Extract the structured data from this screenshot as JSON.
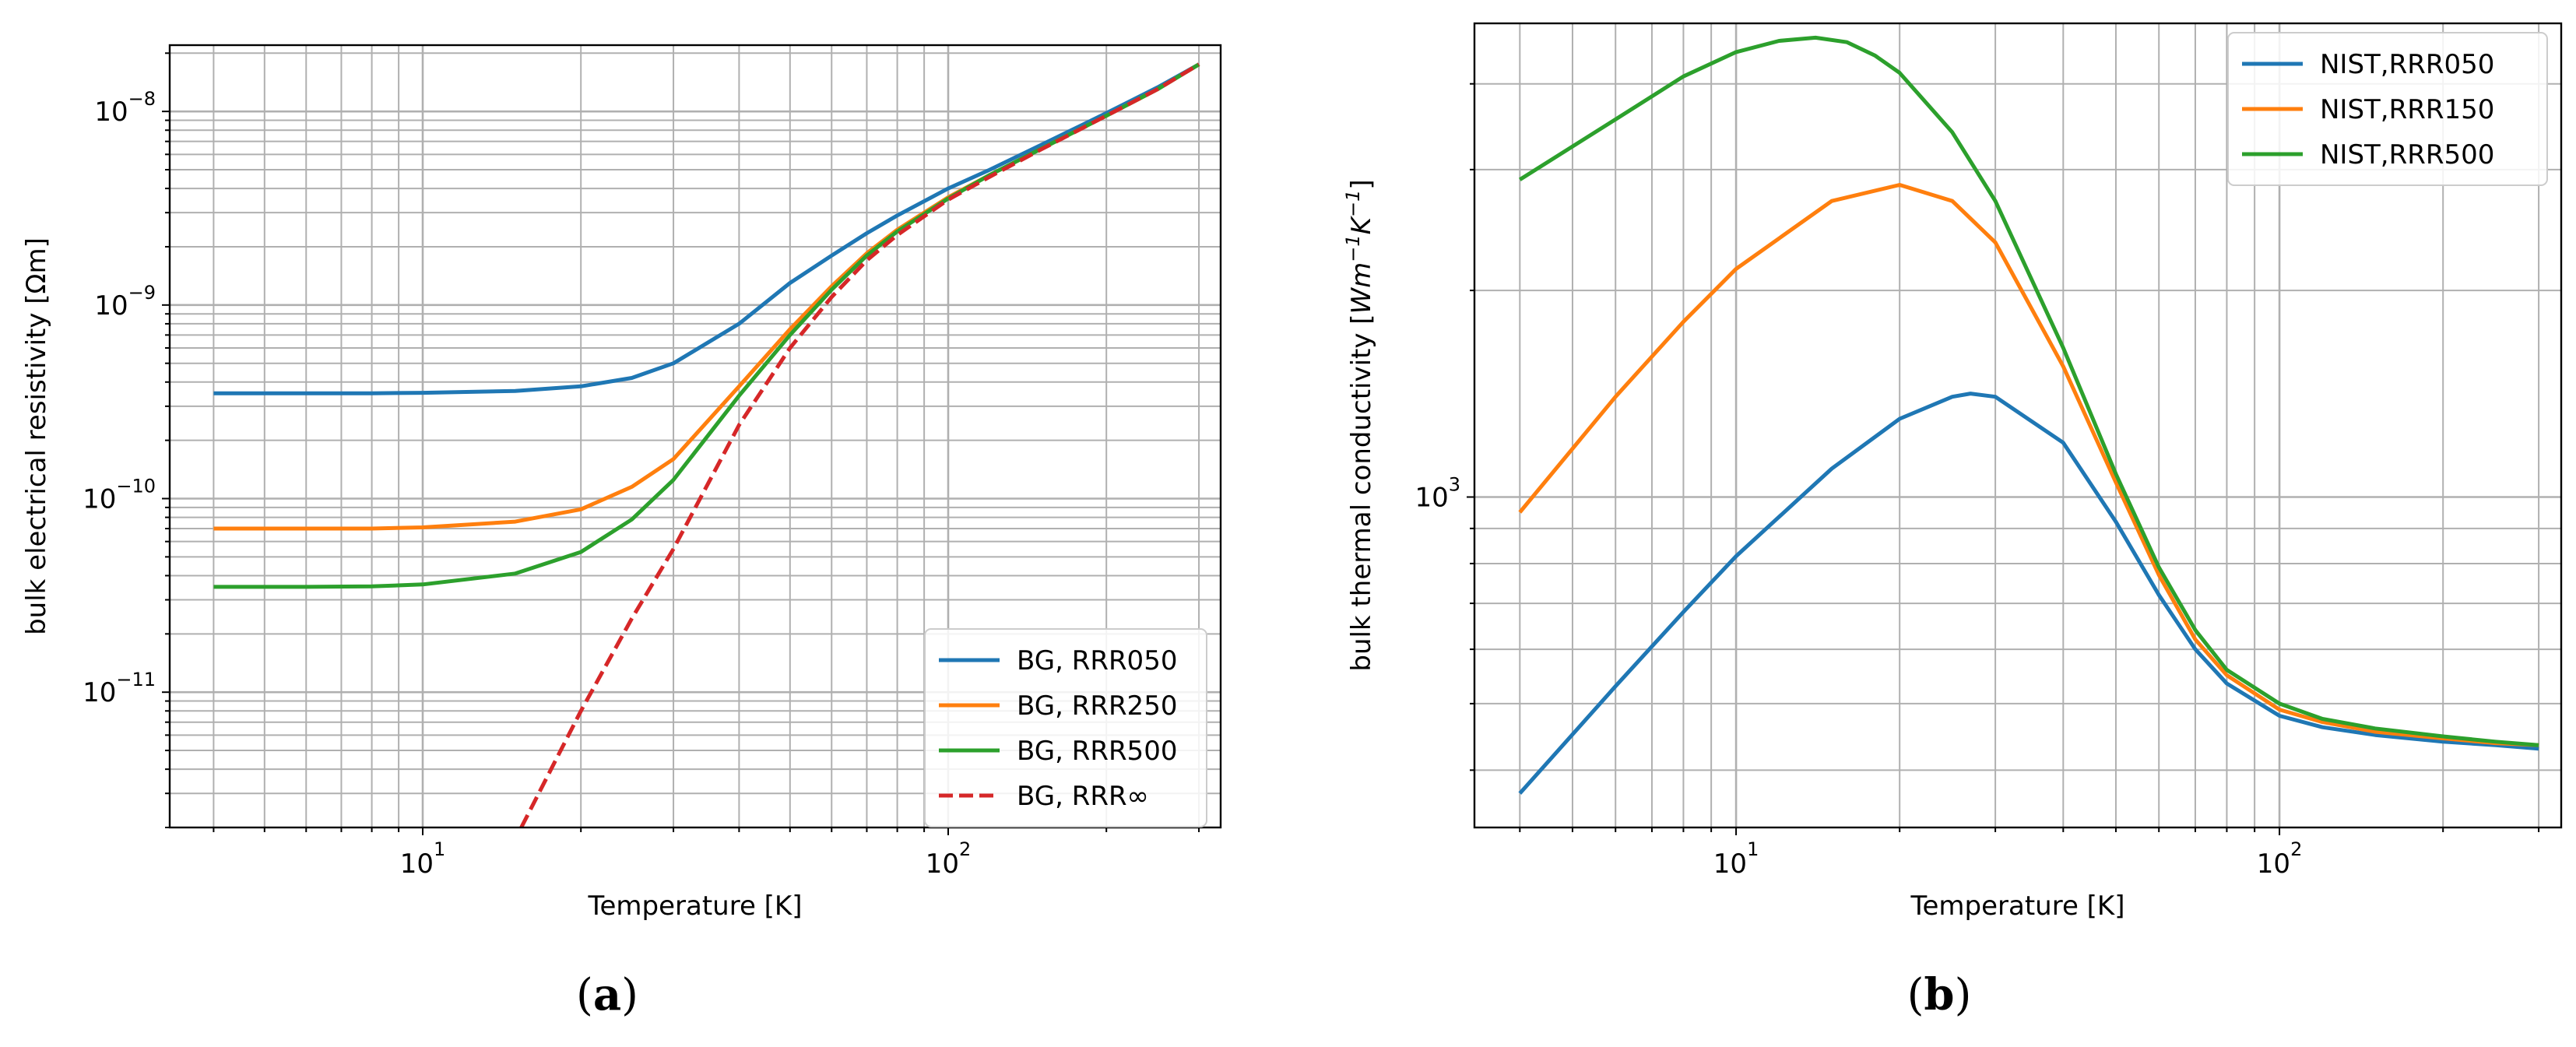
{
  "captions": {
    "a": "a",
    "b": "b"
  },
  "chart_data": [
    {
      "type": "line",
      "panel": "a",
      "xscale": "log",
      "yscale": "log",
      "xlim": [
        3.3,
        330
      ],
      "ylim": [
        2e-12,
        2.2e-08
      ],
      "xlabel": "Temperature [K]",
      "ylabel": "bulk electrical resistivity [Ωm]",
      "xticks": [
        {
          "label_base": "10",
          "label_exp": "1"
        },
        {
          "label_base": "10",
          "label_exp": "2"
        }
      ],
      "yticks": [
        {
          "label_base": "10",
          "label_exp": "−8"
        },
        {
          "label_base": "10",
          "label_exp": "−9"
        },
        {
          "label_base": "10",
          "label_exp": "−10"
        },
        {
          "label_base": "10",
          "label_exp": "−11"
        }
      ],
      "grid": true,
      "legend_position": "lower-right",
      "series": [
        {
          "name": "BG, RRR050",
          "color": "#1f77b4",
          "dash": "solid",
          "x": [
            4,
            6,
            8,
            10,
            15,
            20,
            25,
            30,
            40,
            50,
            60,
            70,
            80,
            100,
            120,
            150,
            200,
            250,
            300
          ],
          "y": [
            3.5e-10,
            3.5e-10,
            3.5e-10,
            3.52e-10,
            3.6e-10,
            3.8e-10,
            4.2e-10,
            5e-10,
            8e-10,
            1.3e-09,
            1.8e-09,
            2.35e-09,
            2.9e-09,
            4e-09,
            5e-09,
            6.7e-09,
            9.8e-09,
            1.33e-08,
            1.75e-08
          ]
        },
        {
          "name": "BG, RRR250",
          "color": "#ff7f0e",
          "dash": "solid",
          "x": [
            4,
            6,
            8,
            10,
            15,
            20,
            25,
            30,
            40,
            50,
            60,
            70,
            80,
            100,
            120,
            150,
            200,
            250,
            300
          ],
          "y": [
            7e-11,
            7e-11,
            7e-11,
            7.1e-11,
            7.6e-11,
            8.8e-11,
            1.15e-10,
            1.6e-10,
            3.8e-10,
            7.5e-10,
            1.25e-09,
            1.85e-09,
            2.45e-09,
            3.6e-09,
            4.7e-09,
            6.4e-09,
            9.5e-09,
            1.3e-08,
            1.75e-08
          ]
        },
        {
          "name": "BG, RRR500",
          "color": "#2ca02c",
          "dash": "solid",
          "x": [
            4,
            6,
            8,
            10,
            15,
            20,
            25,
            30,
            40,
            50,
            60,
            70,
            80,
            100,
            120,
            150,
            200,
            250,
            300
          ],
          "y": [
            3.5e-11,
            3.5e-11,
            3.52e-11,
            3.6e-11,
            4.1e-11,
            5.3e-11,
            7.8e-11,
            1.25e-10,
            3.4e-10,
            7e-10,
            1.2e-09,
            1.8e-09,
            2.4e-09,
            3.55e-09,
            4.7e-09,
            6.4e-09,
            9.5e-09,
            1.3e-08,
            1.75e-08
          ]
        },
        {
          "name": "BG, RRR∞",
          "color": "#d62728",
          "dash": "dashed",
          "x": [
            15.4,
            20,
            25,
            30,
            40,
            50,
            60,
            70,
            80,
            100,
            120,
            150,
            200,
            250,
            300
          ],
          "y": [
            2e-12,
            8e-12,
            2.4e-11,
            5.5e-11,
            2.4e-10,
            6e-10,
            1.1e-09,
            1.7e-09,
            2.3e-09,
            3.5e-09,
            4.6e-09,
            6.35e-09,
            9.5e-09,
            1.3e-08,
            1.75e-08
          ]
        }
      ]
    },
    {
      "type": "line",
      "panel": "b",
      "xscale": "log",
      "yscale": "log",
      "xlim": [
        3.3,
        330
      ],
      "ylim": [
        330,
        4900
      ],
      "xlabel": "Temperature [K]",
      "ylabel_parts": [
        "bulk thermal conductivity [",
        "Wm",
        "−1",
        "K",
        "−1",
        "]"
      ],
      "xticks": [
        {
          "label_base": "10",
          "label_exp": "1"
        },
        {
          "label_base": "10",
          "label_exp": "2"
        }
      ],
      "yticks": [
        {
          "label_base": "10",
          "label_exp": "3"
        }
      ],
      "grid": true,
      "legend_position": "upper-right",
      "series": [
        {
          "name": "NIST,RRR050",
          "color": "#1f77b4",
          "dash": "solid",
          "x": [
            4,
            6,
            8,
            10,
            15,
            20,
            25,
            27,
            30,
            40,
            50,
            60,
            70,
            80,
            100,
            120,
            150,
            200,
            250,
            300
          ],
          "y": [
            370,
            530,
            680,
            820,
            1100,
            1300,
            1400,
            1415,
            1400,
            1200,
            920,
            720,
            600,
            535,
            480,
            462,
            450,
            440,
            435,
            430
          ]
        },
        {
          "name": "NIST,RRR150",
          "color": "#ff7f0e",
          "dash": "solid",
          "x": [
            4,
            6,
            8,
            10,
            15,
            20,
            25,
            30,
            40,
            50,
            60,
            70,
            80,
            100,
            120,
            150,
            200,
            250,
            300
          ],
          "y": [
            950,
            1400,
            1800,
            2150,
            2700,
            2850,
            2700,
            2350,
            1550,
            1050,
            770,
            620,
            550,
            490,
            470,
            455,
            445,
            438,
            435
          ]
        },
        {
          "name": "NIST,RRR500",
          "color": "#2ca02c",
          "dash": "solid",
          "x": [
            4,
            6,
            8,
            10,
            12,
            14,
            16,
            18,
            20,
            25,
            30,
            40,
            50,
            60,
            70,
            80,
            100,
            120,
            150,
            200,
            250,
            300
          ],
          "y": [
            2900,
            3550,
            4100,
            4450,
            4620,
            4670,
            4600,
            4400,
            4150,
            3400,
            2700,
            1650,
            1080,
            790,
            640,
            560,
            500,
            475,
            460,
            448,
            440,
            435
          ]
        }
      ]
    }
  ]
}
